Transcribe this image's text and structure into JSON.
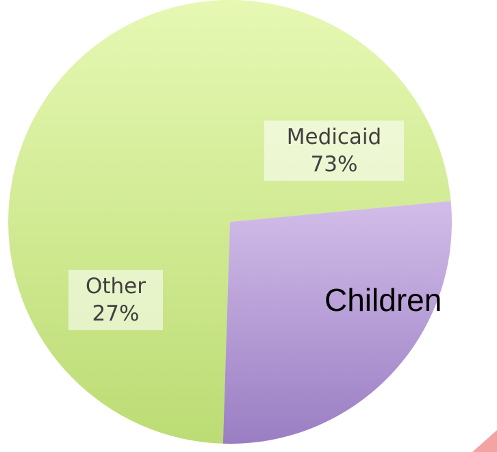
{
  "chart_data": {
    "type": "pie",
    "slices": [
      {
        "name": "Medicaid",
        "value": 73,
        "pct_label": "73%",
        "color": "#d7ef9e"
      },
      {
        "name": "Other",
        "value": 27,
        "pct_label": "27%",
        "color": "#b9a0d6"
      }
    ]
  },
  "caption": "Children",
  "colors": {
    "medicaid_light": "#e6f8b3",
    "medicaid_dark": "#bcdc74",
    "other_light": "#d2bde9",
    "other_dark": "#9a7ec3",
    "corner_accent": "#f4a3a3"
  }
}
